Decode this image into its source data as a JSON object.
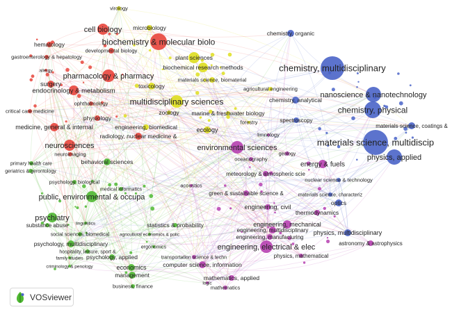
{
  "app": {
    "name": "VOSviewer"
  },
  "colors": {
    "red": "#e8453c",
    "yellow": "#dede1e",
    "blue": "#4a64c8",
    "purple": "#b640b0",
    "green": "#4fb832"
  },
  "clusters": [
    {
      "name": "red",
      "color": "#e8453c"
    },
    {
      "name": "yellow",
      "color": "#dede1e"
    },
    {
      "name": "blue",
      "color": "#4a64c8"
    },
    {
      "name": "purple",
      "color": "#b640b0"
    },
    {
      "name": "green",
      "color": "#4fb832"
    }
  ],
  "nodes": [
    {
      "label": "virology",
      "cluster": "yellow"
    },
    {
      "label": "cell biology",
      "cluster": "red"
    },
    {
      "label": "microbiology",
      "cluster": "yellow"
    },
    {
      "label": "biochemistry & molecular biolo",
      "cluster": "red"
    },
    {
      "label": "hematology",
      "cluster": "red"
    },
    {
      "label": "developmental biology",
      "cluster": "red"
    },
    {
      "label": "gastroenterology & hepatology",
      "cluster": "red"
    },
    {
      "label": "plant sciences",
      "cluster": "yellow"
    },
    {
      "label": "biochemical research methods",
      "cluster": "yellow"
    },
    {
      "label": "allergy",
      "cluster": "red"
    },
    {
      "label": "pharmacology & pharmacy",
      "cluster": "red"
    },
    {
      "label": "materials science, biomaterial",
      "cluster": "yellow"
    },
    {
      "label": "surgery",
      "cluster": "red"
    },
    {
      "label": "toxicology",
      "cluster": "yellow"
    },
    {
      "label": "agricultural engineering",
      "cluster": "yellow"
    },
    {
      "label": "endocrinology & metabolism",
      "cluster": "red"
    },
    {
      "label": "ophthalmology",
      "cluster": "red"
    },
    {
      "label": "multidisciplinary sciences",
      "cluster": "yellow"
    },
    {
      "label": "chemistry, analytical",
      "cluster": "blue"
    },
    {
      "label": "critical care medicine",
      "cluster": "red"
    },
    {
      "label": "zoology",
      "cluster": "yellow"
    },
    {
      "label": "marine & freshwater biology",
      "cluster": "yellow"
    },
    {
      "label": "physiology",
      "cluster": "red"
    },
    {
      "label": "forestry",
      "cluster": "yellow"
    },
    {
      "label": "medicine, general & internal",
      "cluster": "red"
    },
    {
      "label": "engineering, biomedical",
      "cluster": "yellow"
    },
    {
      "label": "ecology",
      "cluster": "yellow"
    },
    {
      "label": "radiology, nuclear medicine &",
      "cluster": "red"
    },
    {
      "label": "neurosciences",
      "cluster": "red"
    },
    {
      "label": "environmental sciences",
      "cluster": "purple"
    },
    {
      "label": "neuroimaging",
      "cluster": "red"
    },
    {
      "label": "oceanography",
      "cluster": "purple"
    },
    {
      "label": "primary health care",
      "cluster": "green"
    },
    {
      "label": "behavioral sciences",
      "cluster": "green"
    },
    {
      "label": "geriatrics & gerontology",
      "cluster": "green"
    },
    {
      "label": "chemistry, organic",
      "cluster": "blue"
    },
    {
      "label": "chemistry, multidisciplinary",
      "cluster": "blue"
    },
    {
      "label": "nanoscience & nanotechnology",
      "cluster": "blue"
    },
    {
      "label": "chemistry, physical",
      "cluster": "blue"
    },
    {
      "label": "spectroscopy",
      "cluster": "blue"
    },
    {
      "label": "limnology",
      "cluster": "purple"
    },
    {
      "label": "materials science, coatings &",
      "cluster": "blue"
    },
    {
      "label": "materials science, multidiscip",
      "cluster": "blue"
    },
    {
      "label": "physics, applied",
      "cluster": "blue"
    },
    {
      "label": "geology",
      "cluster": "purple"
    },
    {
      "label": "energy & fuels",
      "cluster": "purple"
    },
    {
      "label": "meteorology & atmospheric scie",
      "cluster": "purple"
    },
    {
      "label": "psychology, biological",
      "cluster": "green"
    },
    {
      "label": "medical informatics",
      "cluster": "green"
    },
    {
      "label": "acoustics",
      "cluster": "purple"
    },
    {
      "label": "green & sustainable science &",
      "cluster": "purple"
    },
    {
      "label": "nuclear science & technology",
      "cluster": "blue"
    },
    {
      "label": "materials science, characteriz",
      "cluster": "blue"
    },
    {
      "label": "public, environmental & occupa",
      "cluster": "green"
    },
    {
      "label": "optics",
      "cluster": "blue"
    },
    {
      "label": "engineering, civil",
      "cluster": "purple"
    },
    {
      "label": "thermodynamics",
      "cluster": "purple"
    },
    {
      "label": "psychiatry",
      "cluster": "green"
    },
    {
      "label": "substance abuse",
      "cluster": "green"
    },
    {
      "label": "linguistics",
      "cluster": "green"
    },
    {
      "label": "statistics & probability",
      "cluster": "green"
    },
    {
      "label": "engineering, mechanical",
      "cluster": "purple"
    },
    {
      "label": "physics, multidisciplinary",
      "cluster": "blue"
    },
    {
      "label": "engineering, multidisciplinary",
      "cluster": "purple"
    },
    {
      "label": "social sciences, biomedical",
      "cluster": "green"
    },
    {
      "label": "agricultural economics & polic",
      "cluster": "green"
    },
    {
      "label": "engineering, manufacturing",
      "cluster": "purple"
    },
    {
      "label": "psychology, multidisciplinary",
      "cluster": "green"
    },
    {
      "label": "ergonomics",
      "cluster": "green"
    },
    {
      "label": "engineering, electrical & elec",
      "cluster": "purple"
    },
    {
      "label": "astronomy & astrophysics",
      "cluster": "purple"
    },
    {
      "label": "hospitality, leisure, sport &",
      "cluster": "green"
    },
    {
      "label": "family studies",
      "cluster": "green"
    },
    {
      "label": "psychology, applied",
      "cluster": "green"
    },
    {
      "label": "transportation science & techn",
      "cluster": "purple"
    },
    {
      "label": "physics, mathematical",
      "cluster": "purple"
    },
    {
      "label": "criminology & penology",
      "cluster": "green"
    },
    {
      "label": "economics",
      "cluster": "green"
    },
    {
      "label": "computer science, information",
      "cluster": "purple"
    },
    {
      "label": "management",
      "cluster": "green"
    },
    {
      "label": "mathematics, applied",
      "cluster": "purple"
    },
    {
      "label": "business, finance",
      "cluster": "green"
    },
    {
      "label": "logic",
      "cluster": "purple"
    },
    {
      "label": "mathematics",
      "cluster": "purple"
    }
  ]
}
